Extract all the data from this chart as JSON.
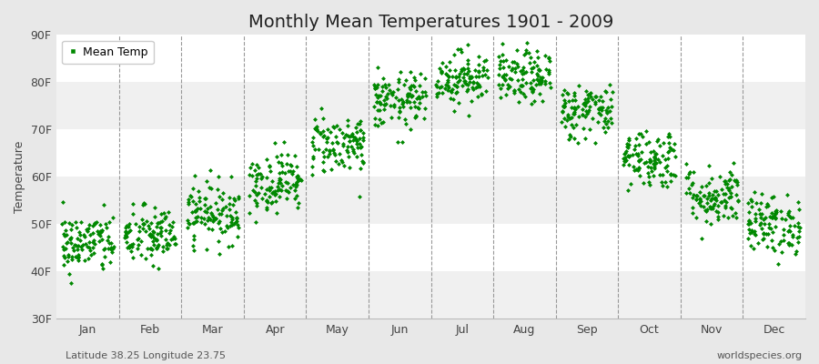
{
  "title": "Monthly Mean Temperatures 1901 - 2009",
  "ylabel": "Temperature",
  "footer_left": "Latitude 38.25 Longitude 23.75",
  "footer_right": "worldspecies.org",
  "legend_label": "Mean Temp",
  "ylim": [
    30,
    90
  ],
  "ytick_labels": [
    "30F",
    "40F",
    "50F",
    "60F",
    "70F",
    "80F",
    "90F"
  ],
  "ytick_values": [
    30,
    40,
    50,
    60,
    70,
    80,
    90
  ],
  "months": [
    "Jan",
    "Feb",
    "Mar",
    "Apr",
    "May",
    "Jun",
    "Jul",
    "Aug",
    "Sep",
    "Oct",
    "Nov",
    "Dec"
  ],
  "mean_temps_F": [
    46.0,
    47.5,
    52.5,
    59.0,
    67.0,
    76.0,
    81.0,
    81.0,
    74.0,
    64.0,
    56.0,
    50.0
  ],
  "std_temps_F": [
    3.2,
    3.2,
    3.2,
    3.2,
    3.2,
    3.0,
    2.8,
    2.8,
    3.0,
    3.2,
    3.2,
    3.2
  ],
  "n_years": 109,
  "marker_color": "#008800",
  "marker": "D",
  "marker_size": 2.5,
  "fig_bg_color": "#e8e8e8",
  "plot_bg_color": "#ffffff",
  "band_color_odd": "#f0f0f0",
  "band_color_even": "#ffffff",
  "vline_color": "#999999",
  "title_fontsize": 14,
  "axis_label_fontsize": 9,
  "tick_fontsize": 9,
  "footer_fontsize": 8,
  "seed": 42
}
